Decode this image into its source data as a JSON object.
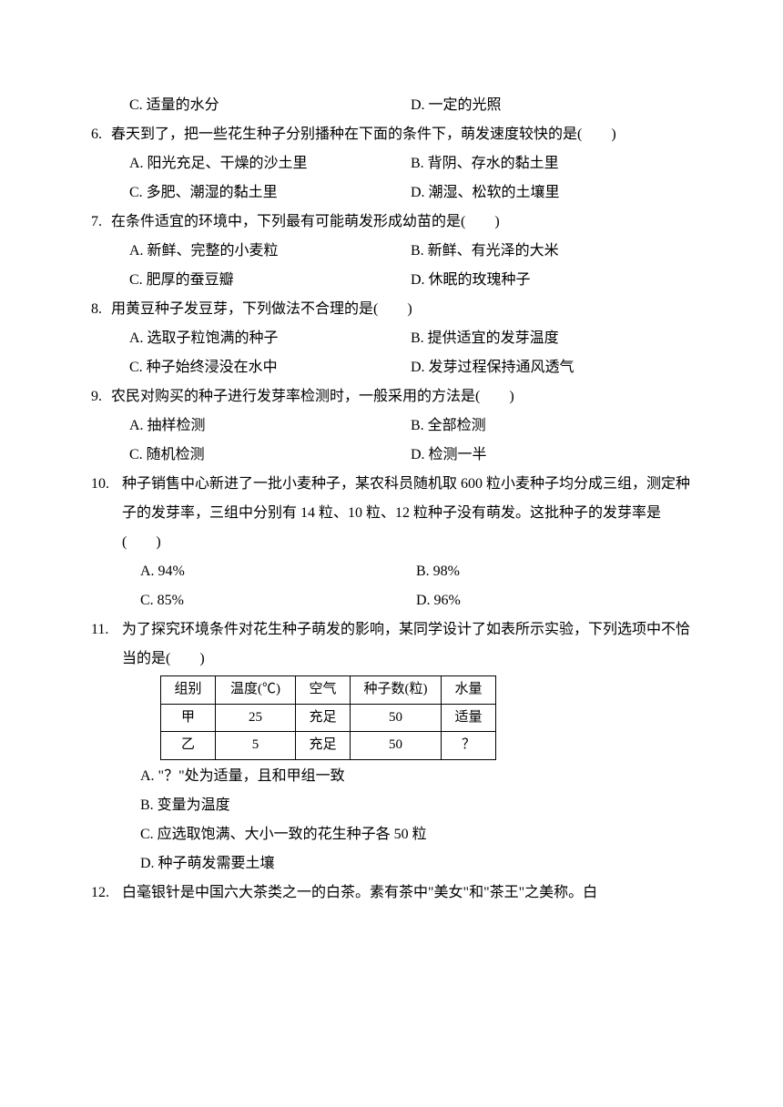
{
  "q5": {
    "optC": "C. 适量的水分",
    "optD": "D. 一定的光照"
  },
  "q6": {
    "num": "6.",
    "text": "春天到了，把一些花生种子分别播种在下面的条件下，萌发速度较快的是(　　)",
    "optA": "A. 阳光充足、干燥的沙土里",
    "optB": "B. 背阴、存水的黏土里",
    "optC": "C. 多肥、潮湿的黏土里",
    "optD": "D. 潮湿、松软的土壤里"
  },
  "q7": {
    "num": "7.",
    "text": "在条件适宜的环境中，下列最有可能萌发形成幼苗的是(　　)",
    "optA": "A. 新鲜、完整的小麦粒",
    "optB": "B. 新鲜、有光泽的大米",
    "optC": "C. 肥厚的蚕豆瓣",
    "optD": "D. 休眠的玫瑰种子"
  },
  "q8": {
    "num": "8.",
    "text": "用黄豆种子发豆芽，下列做法不合理的是(　　)",
    "optA": "A. 选取子粒饱满的种子",
    "optB": "B. 提供适宜的发芽温度",
    "optC": "C. 种子始终浸没在水中",
    "optD": "D. 发芽过程保持通风透气"
  },
  "q9": {
    "num": "9.",
    "text": "农民对购买的种子进行发芽率检测时，一般采用的方法是(　　)",
    "optA": "A. 抽样检测",
    "optB": "B. 全部检测",
    "optC": "C. 随机检测",
    "optD": "D. 检测一半"
  },
  "q10": {
    "num": "10.",
    "text": "种子销售中心新进了一批小麦种子，某农科员随机取 600 粒小麦种子均分成三组，测定种子的发芽率，三组中分别有 14 粒、10 粒、12 粒种子没有萌发。这批种子的发芽率是(　　)",
    "optA": "A. 94%",
    "optB": "B. 98%",
    "optC": "C. 85%",
    "optD": "D. 96%"
  },
  "q11": {
    "num": "11.",
    "text": "为了探究环境条件对花生种子萌发的影响，某同学设计了如表所示实验，下列选项中不恰当的是(　　)",
    "table": {
      "headers": [
        "组别",
        "温度(℃)",
        "空气",
        "种子数(粒)",
        "水量"
      ],
      "rows": [
        [
          "甲",
          "25",
          "充足",
          "50",
          "适量"
        ],
        [
          "乙",
          "5",
          "充足",
          "50",
          "？"
        ]
      ]
    },
    "optA": "A. \"？\"处为适量，且和甲组一致",
    "optB": "B. 变量为温度",
    "optC": "C. 应选取饱满、大小一致的花生种子各 50 粒",
    "optD": "D. 种子萌发需要土壤"
  },
  "q12": {
    "num": "12.",
    "text": "白毫银针是中国六大茶类之一的白茶。素有茶中\"美女\"和\"茶王\"之美称。白"
  }
}
